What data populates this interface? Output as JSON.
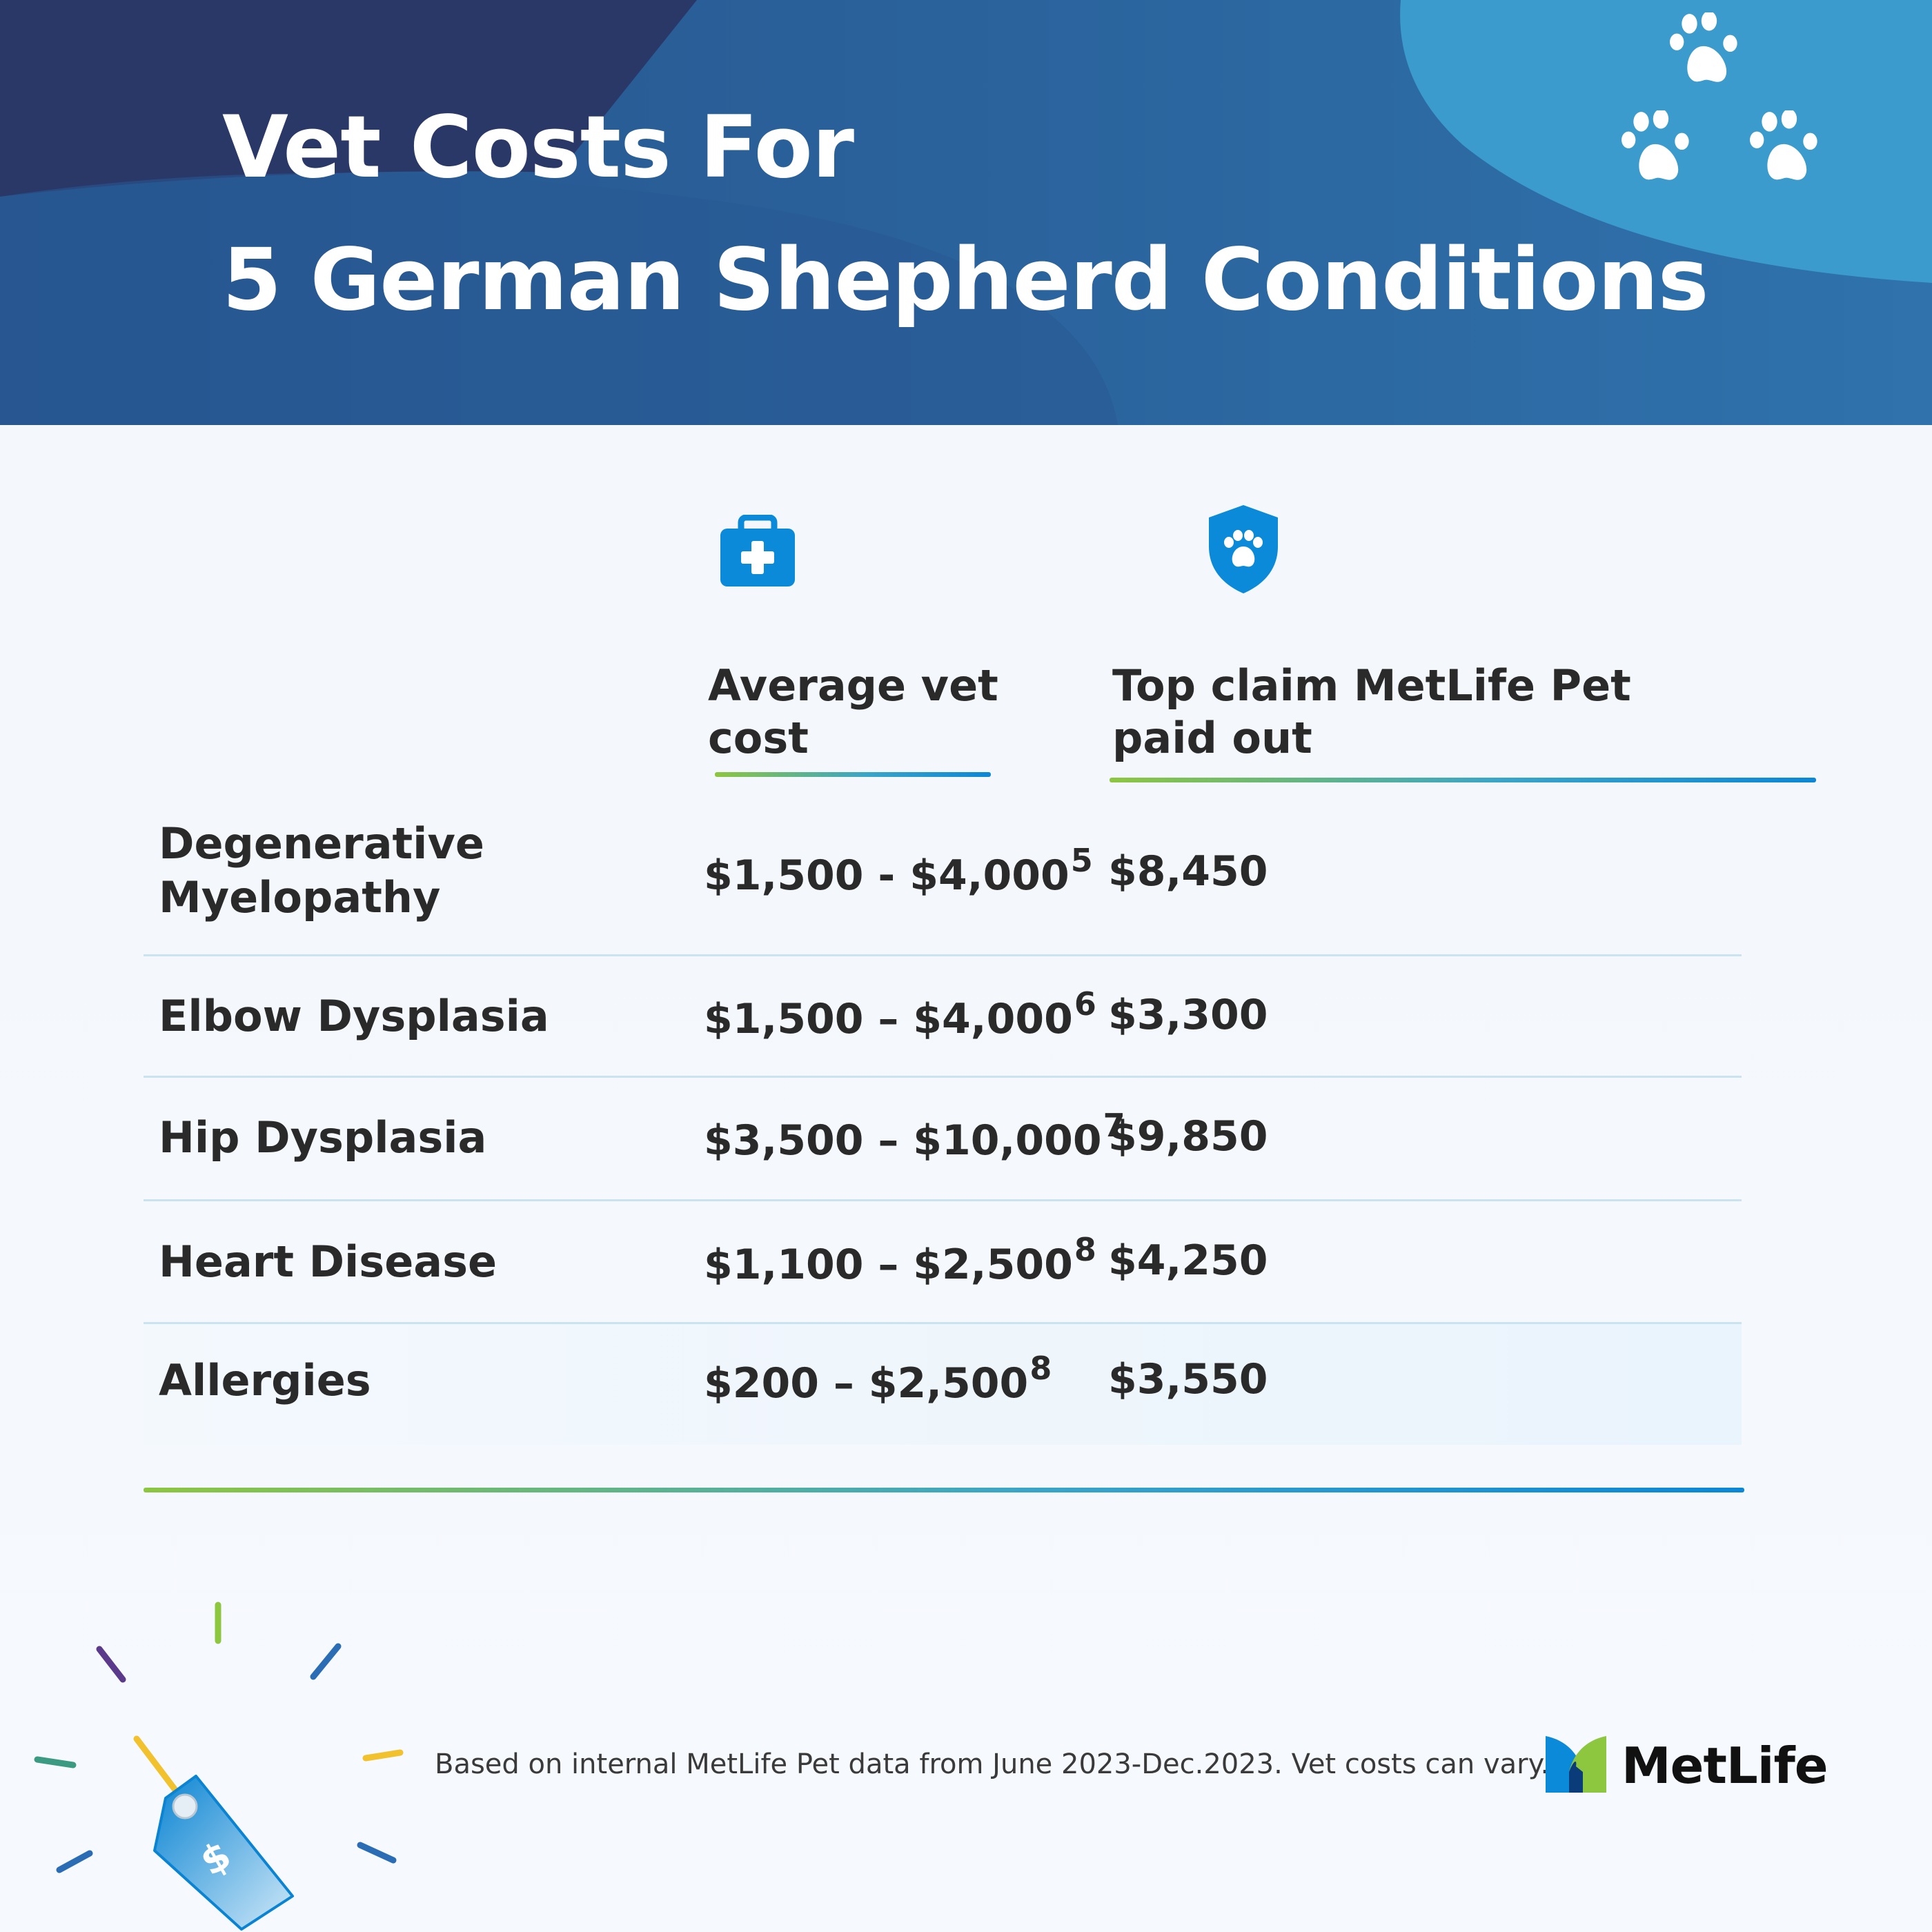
{
  "header": {
    "title_line1": "Vet Costs For",
    "title_line2": "5 German Shepherd Conditions"
  },
  "columns": [
    {
      "label": "Average vet cost",
      "icon": "medical-kit-icon"
    },
    {
      "label": "Top claim MetLife Pet paid out",
      "icon": "paw-shield-icon"
    }
  ],
  "rows": [
    {
      "condition": "Degenerative Myelopathy",
      "cost": "$1,500 - $4,000",
      "ref": "5",
      "paid": "$8,450"
    },
    {
      "condition": "Elbow Dysplasia",
      "cost": "$1,500 – $4,000",
      "ref": "6",
      "paid": "$3,300"
    },
    {
      "condition": "Hip Dysplasia",
      "cost": "$3,500 – $10,000",
      "ref": "7",
      "paid": "$9,850"
    },
    {
      "condition": "Heart Disease",
      "cost": "$1,100 – $2,500",
      "ref": "8",
      "paid": "$4,250"
    },
    {
      "condition": "Allergies",
      "cost": "$200 – $2,500",
      "ref": "8",
      "paid": "$3,550"
    }
  ],
  "footer": {
    "note": "Based on internal MetLife Pet data from June 2023-Dec.2023. Vet costs can vary.",
    "brand": "MetLife"
  },
  "colors": {
    "header_dark": "#2a3868",
    "header_mid": "#2b5c93",
    "header_light": "#3b9bcc",
    "icon_blue": "#0a8ad9",
    "rule_green": "#8dc63f",
    "rule_blue": "#0b87d6"
  }
}
